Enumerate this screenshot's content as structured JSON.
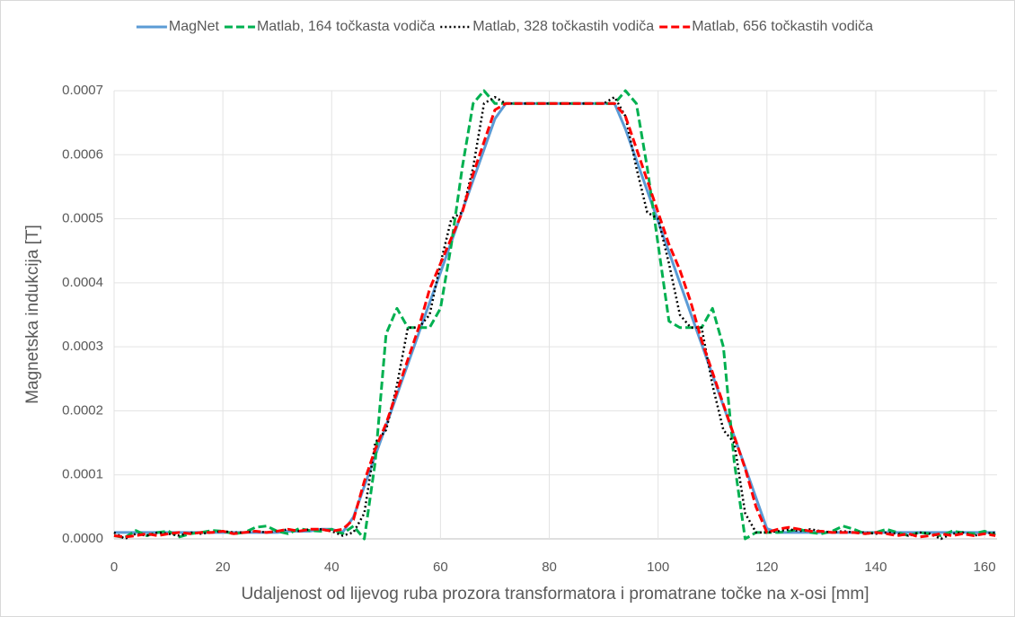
{
  "chart_data": {
    "type": "line",
    "x_label": "Udaljenost od lijevog ruba prozora transformatora i promatrane točke na x-osi [mm]",
    "y_label": "Magnetska indukcija [T]",
    "x": [
      0,
      2,
      4,
      6,
      8,
      10,
      12,
      14,
      16,
      18,
      20,
      22,
      24,
      26,
      28,
      30,
      32,
      34,
      36,
      38,
      40,
      42,
      44,
      46,
      48,
      50,
      52,
      54,
      56,
      58,
      60,
      62,
      64,
      66,
      68,
      70,
      72,
      74,
      76,
      78,
      80,
      82,
      84,
      86,
      88,
      90,
      92,
      94,
      96,
      98,
      100,
      102,
      104,
      106,
      108,
      110,
      112,
      114,
      116,
      118,
      120,
      122,
      124,
      126,
      128,
      130,
      132,
      134,
      136,
      138,
      140,
      142,
      144,
      146,
      148,
      150,
      152,
      154,
      156,
      158,
      160,
      162
    ],
    "series": [
      {
        "name": "MagNet",
        "color": "#5b9bd5",
        "line_style": "solid",
        "values": [
          1e-05,
          1e-05,
          1e-05,
          1e-05,
          1e-05,
          1e-05,
          1e-05,
          1e-05,
          1e-05,
          1e-05,
          1e-05,
          1e-05,
          1e-05,
          1e-05,
          1e-05,
          1e-05,
          1.2e-05,
          1.2e-05,
          1.2e-05,
          1.5e-05,
          1.5e-05,
          1e-05,
          3.4e-05,
          8.2e-05,
          0.00013,
          0.000177,
          0.000225,
          0.000273,
          0.000321,
          0.000369,
          0.000416,
          0.000464,
          0.000512,
          0.00056,
          0.000608,
          0.000656,
          0.00068,
          0.00068,
          0.00068,
          0.00068,
          0.00068,
          0.00068,
          0.00068,
          0.00068,
          0.00068,
          0.00068,
          0.00068,
          0.00064,
          0.000592,
          0.000544,
          0.000496,
          0.000448,
          0.0004,
          0.000352,
          0.000304,
          0.000256,
          0.000208,
          0.00016,
          0.000112,
          6.4e-05,
          1.6e-05,
          1e-05,
          1e-05,
          1e-05,
          1e-05,
          1e-05,
          1e-05,
          1e-05,
          1e-05,
          1e-05,
          1e-05,
          1e-05,
          1e-05,
          1e-05,
          1e-05,
          1e-05,
          1e-05,
          1e-05,
          1e-05,
          1e-05,
          1e-05,
          1e-05
        ]
      },
      {
        "name": "Matlab, 164 točkasta vodiča",
        "color": "#00b050",
        "line_style": "dashed",
        "values": [
          5e-06,
          2e-06,
          1.3e-05,
          5e-06,
          1e-05,
          1.2e-05,
          3e-06,
          8e-06,
          1e-05,
          1.3e-05,
          1.2e-05,
          8e-06,
          1e-05,
          1.8e-05,
          2e-05,
          1.2e-05,
          8e-06,
          1.6e-05,
          1.3e-05,
          1.2e-05,
          1.5e-05,
          8e-06,
          2e-05,
          0.0,
          0.00012,
          0.00032,
          0.00036,
          0.00033,
          0.00033,
          0.00033,
          0.00036,
          0.00046,
          0.00058,
          0.00068,
          0.0007,
          0.00068,
          0.00068,
          0.00068,
          0.00068,
          0.00068,
          0.00068,
          0.00068,
          0.00068,
          0.00068,
          0.00068,
          0.00068,
          0.00068,
          0.0007,
          0.00068,
          0.00058,
          0.00046,
          0.00034,
          0.00033,
          0.00033,
          0.00033,
          0.00036,
          0.0003,
          0.00012,
          0.0,
          1e-05,
          1e-05,
          1e-05,
          1.2e-05,
          1.5e-05,
          1e-05,
          8e-06,
          1.2e-05,
          2e-05,
          1.5e-05,
          8e-06,
          1e-05,
          1.5e-05,
          1e-05,
          5e-06,
          1e-05,
          8e-06,
          5e-06,
          1.2e-05,
          1e-05,
          8e-06,
          1.2e-05,
          6e-06
        ]
      },
      {
        "name": "Matlab, 328 točkastih vodiča",
        "color": "#000000",
        "line_style": "dotted",
        "values": [
          1e-05,
          0.0,
          8e-06,
          5e-06,
          1e-05,
          8e-06,
          5e-06,
          1e-05,
          8e-06,
          1e-05,
          1.2e-05,
          1e-05,
          1e-05,
          1.2e-05,
          1e-05,
          1.2e-05,
          1.5e-05,
          1.2e-05,
          1.5e-05,
          1.5e-05,
          1.2e-05,
          5e-06,
          1e-05,
          4e-05,
          0.00015,
          0.00017,
          0.00024,
          0.00033,
          0.00033,
          0.00035,
          0.00043,
          0.0005,
          0.00051,
          0.00058,
          0.00068,
          0.00069,
          0.00068,
          0.00068,
          0.00068,
          0.00068,
          0.00068,
          0.00068,
          0.00068,
          0.00068,
          0.00068,
          0.00068,
          0.00069,
          0.00066,
          0.00058,
          0.00051,
          0.0005,
          0.00043,
          0.00035,
          0.00033,
          0.00033,
          0.00024,
          0.00017,
          0.00015,
          4e-05,
          1e-05,
          1e-05,
          1.2e-05,
          1.5e-05,
          1.2e-05,
          1.5e-05,
          1.2e-05,
          1e-05,
          1.2e-05,
          1e-05,
          1e-05,
          8e-06,
          1e-05,
          8e-06,
          5e-06,
          1e-05,
          8e-06,
          0.0,
          8e-06,
          1e-05,
          5e-06,
          8e-06,
          1e-05
        ]
      },
      {
        "name": "Matlab, 656 točkastih vodiča",
        "color": "#ff0000",
        "line_style": "dashed",
        "values": [
          5e-06,
          3e-06,
          5e-06,
          8e-06,
          5e-06,
          8e-06,
          1e-05,
          8e-06,
          1e-05,
          1e-05,
          1.2e-05,
          8e-06,
          1e-05,
          1.2e-05,
          1e-05,
          1.2e-05,
          1.5e-05,
          1.2e-05,
          1.5e-05,
          1.5e-05,
          1.2e-05,
          1.5e-05,
          3e-05,
          9e-05,
          0.00014,
          0.00018,
          0.00023,
          0.00028,
          0.00033,
          0.00039,
          0.00043,
          0.00047,
          0.00051,
          0.00057,
          0.00062,
          0.00067,
          0.00068,
          0.00068,
          0.00068,
          0.00068,
          0.00068,
          0.00068,
          0.00068,
          0.00068,
          0.00068,
          0.00068,
          0.00068,
          0.00066,
          0.00061,
          0.00056,
          0.00051,
          0.00046,
          0.00042,
          0.00037,
          0.00031,
          0.00026,
          0.00021,
          0.00016,
          0.00011,
          5e-05,
          1e-05,
          1.5e-05,
          1.8e-05,
          1.5e-05,
          1.2e-05,
          1.2e-05,
          1e-05,
          1e-05,
          1e-05,
          8e-06,
          1e-05,
          8e-06,
          5e-06,
          8e-06,
          3e-06,
          5e-06,
          8e-06,
          5e-06,
          8e-06,
          5e-06,
          8e-06,
          5e-06
        ]
      }
    ],
    "xlim": [
      0,
      162.3
    ],
    "xticks": [
      0,
      20,
      40,
      60,
      80,
      100,
      120,
      140,
      160
    ],
    "ylim": [
      0,
      0.0007
    ],
    "yticks": [
      {
        "value": 0,
        "label": "0.0000"
      },
      0.0001,
      0.0002,
      0.0003,
      0.0004,
      0.0005,
      0.0006,
      0.0007
    ],
    "grid": true,
    "legend": "top"
  }
}
